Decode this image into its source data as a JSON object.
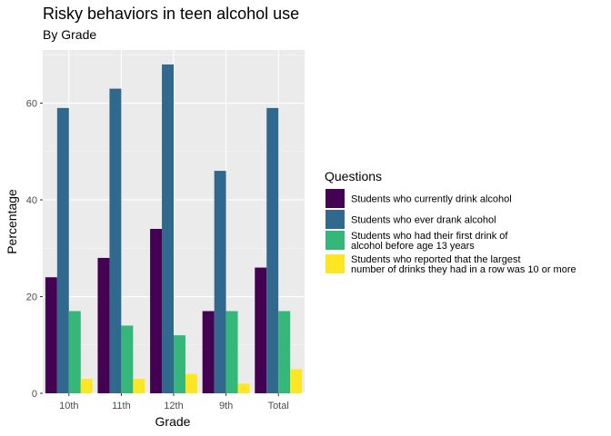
{
  "chart_data": {
    "type": "bar",
    "title": "Risky behaviors in teen alcohol use",
    "subtitle": "By Grade",
    "xlabel": "Grade",
    "ylabel": "Percentage",
    "categories": [
      "10th",
      "11th",
      "12th",
      "9th",
      "Total"
    ],
    "ylim": [
      0,
      71
    ],
    "yticks": [
      0,
      20,
      40,
      60
    ],
    "grid": true,
    "legend_position": "right",
    "legend_title": "Questions",
    "series": [
      {
        "name": "Students who currently drink alcohol",
        "color": "#440154",
        "values": [
          24,
          28,
          34,
          17,
          26
        ]
      },
      {
        "name": "Students who ever drank alcohol",
        "color": "#31688e",
        "values": [
          59,
          63,
          68,
          46,
          59
        ]
      },
      {
        "name": "Students who had their first drink of\nalcohol before age 13 years",
        "color": "#35b779",
        "values": [
          17,
          14,
          12,
          17,
          17
        ]
      },
      {
        "name": "Students who reported that the largest\nnumber of drinks they had in a row was 10 or more",
        "color": "#fde725",
        "values": [
          3,
          3,
          4,
          2,
          5
        ]
      }
    ]
  }
}
